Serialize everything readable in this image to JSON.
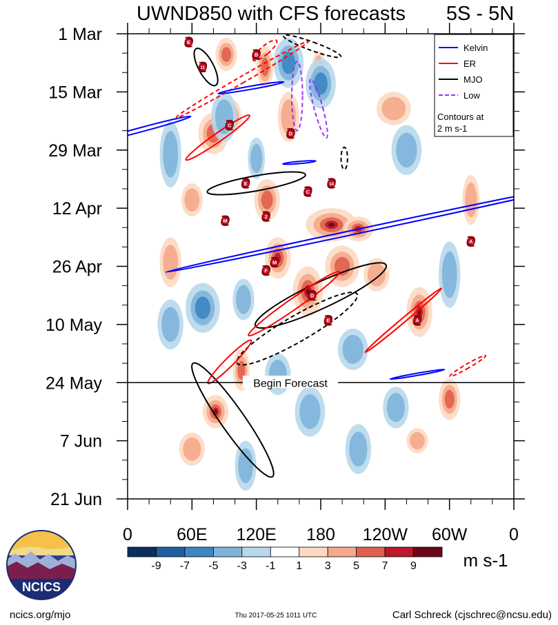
{
  "chart_data": {
    "type": "heatmap",
    "title": "UWND850 with CFS forecasts",
    "region": "5S - 5N",
    "y_labels": [
      "1 Mar",
      "15 Mar",
      "29 Mar",
      "12 Apr",
      "26 Apr",
      "10 May",
      "24 May",
      "7 Jun",
      "21 Jun"
    ],
    "x_labels": [
      "0",
      "60E",
      "120E",
      "180",
      "120W",
      "60W",
      "0"
    ],
    "x_range_deg_east": [
      0,
      360
    ],
    "y_range_days_from_1mar": [
      0,
      112
    ],
    "forecast_start_day": 84,
    "forecast_label": "Begin Forecast",
    "colorbar": {
      "unit": "m s-1",
      "tick_labels": [
        "-9",
        "-7",
        "-5",
        "-3",
        "-1",
        "1",
        "3",
        "5",
        "7",
        "9"
      ],
      "colors": [
        "#0b2f5e",
        "#1f5fa3",
        "#3d86c2",
        "#7fb4da",
        "#b8d8ec",
        "#ffffff",
        "#fcd9c3",
        "#f5a98a",
        "#e0604e",
        "#b8192b",
        "#6b0718"
      ]
    },
    "legend": [
      {
        "label": "Kelvin",
        "color": "#0000ff",
        "dash": "solid"
      },
      {
        "label": "ER",
        "color": "#ff0000",
        "dash": "solid"
      },
      {
        "label": "MJO",
        "color": "#000000",
        "dash": "solid"
      },
      {
        "label": "Low",
        "color": "#9b30ff",
        "dash": "dashed"
      }
    ],
    "legend_note": [
      "Contours at",
      "2 m s-1"
    ],
    "storms": [
      {
        "lon": 57,
        "day": 2,
        "label": "E"
      },
      {
        "lon": 70,
        "day": 8,
        "label": "11"
      },
      {
        "lon": 120,
        "day": 5,
        "label": "B"
      },
      {
        "lon": 95,
        "day": 22,
        "label": "C"
      },
      {
        "lon": 152,
        "day": 24,
        "label": "D"
      },
      {
        "lon": 110,
        "day": 36,
        "label": "E"
      },
      {
        "lon": 168,
        "day": 38,
        "label": "C"
      },
      {
        "lon": 190,
        "day": 36,
        "label": "14"
      },
      {
        "lon": 91,
        "day": 45,
        "label": "M"
      },
      {
        "lon": 129,
        "day": 44,
        "label": "2"
      },
      {
        "lon": 320,
        "day": 50,
        "label": "A"
      },
      {
        "lon": 137,
        "day": 55,
        "label": "M"
      },
      {
        "lon": 129,
        "day": 57,
        "label": "F"
      },
      {
        "lon": 172,
        "day": 63,
        "label": "D"
      },
      {
        "lon": 187,
        "day": 69,
        "label": "E"
      },
      {
        "lon": 270,
        "day": 69,
        "label": "A"
      }
    ],
    "contours": [
      {
        "wave": "MJO",
        "style": "solid",
        "center": [
          73,
          8
        ],
        "rx": 7,
        "ry": 15,
        "angle": -28
      },
      {
        "wave": "MJO",
        "style": "dashed",
        "center": [
          172,
          3
        ],
        "rx": 4,
        "ry": 22,
        "angle": -70
      },
      {
        "wave": "MJO",
        "style": "dashed",
        "center": [
          202,
          30
        ],
        "rx": 3,
        "ry": 8,
        "angle": 0
      },
      {
        "wave": "MJO",
        "style": "solid",
        "center": [
          120,
          36
        ],
        "rx": 7,
        "ry": 36,
        "angle": 80
      },
      {
        "wave": "MJO",
        "style": "solid",
        "center": [
          180,
          63
        ],
        "rx": 12,
        "ry": 52,
        "angle": 65
      },
      {
        "wave": "MJO",
        "style": "dashed",
        "center": [
          158,
          71
        ],
        "rx": 12,
        "ry": 50,
        "angle": 60
      },
      {
        "wave": "MJO",
        "style": "solid",
        "center": [
          98,
          93
        ],
        "rx": 11,
        "ry": 50,
        "angle": -35
      },
      {
        "wave": "ER",
        "style": "dashed",
        "center": [
          107,
          11
        ],
        "rx": 3,
        "ry": 55,
        "angle": 60
      },
      {
        "wave": "ER",
        "style": "dashed",
        "center": [
          128,
          4
        ],
        "rx": 4,
        "ry": 11,
        "angle": 50
      },
      {
        "wave": "ER",
        "style": "solid",
        "center": [
          84,
          25
        ],
        "rx": 4,
        "ry": 28,
        "angle": 55
      },
      {
        "wave": "ER",
        "style": "solid",
        "center": [
          155,
          65
        ],
        "rx": 5,
        "ry": 40,
        "angle": 55
      },
      {
        "wave": "ER",
        "style": "solid",
        "center": [
          95,
          79
        ],
        "rx": 4,
        "ry": 22,
        "angle": 45
      },
      {
        "wave": "ER",
        "style": "solid",
        "center": [
          257,
          69
        ],
        "rx": 2,
        "ry": 36,
        "angle": 50
      },
      {
        "wave": "ER",
        "style": "dashed",
        "center": [
          317,
          80
        ],
        "rx": 2,
        "ry": 15,
        "angle": 60
      },
      {
        "wave": "Kelvin",
        "style": "solid",
        "center": [
          14,
          23
        ],
        "rx": 2,
        "ry": 36,
        "angle": 75
      },
      {
        "wave": "Kelvin",
        "style": "solid",
        "center": [
          115,
          13
        ],
        "rx": 1.5,
        "ry": 24,
        "angle": 80
      },
      {
        "wave": "Kelvin",
        "style": "solid",
        "center": [
          225,
          47
        ],
        "rx": 2,
        "ry": 150,
        "angle": 78
      },
      {
        "wave": "Kelvin",
        "style": "solid",
        "center": [
          270,
          82
        ],
        "rx": 1,
        "ry": 20,
        "angle": 80
      },
      {
        "wave": "Kelvin",
        "style": "solid",
        "center": [
          160,
          31
        ],
        "rx": 1,
        "ry": 12,
        "angle": 85
      },
      {
        "wave": "Low",
        "style": "dashed",
        "center": [
          158,
          15
        ],
        "rx": 5,
        "ry": 25,
        "angle": 0
      },
      {
        "wave": "Low",
        "style": "dashed",
        "center": [
          178,
          18
        ],
        "rx": 4,
        "ry": 22,
        "angle": -15
      }
    ]
  },
  "footer": {
    "site": "ncics.org/mjo",
    "timestamp": "Thu 2017-05-25 1011 UTC",
    "author": "Carl Schreck (cjschrec@ncsu.edu)",
    "logo_text": "NCICS"
  }
}
